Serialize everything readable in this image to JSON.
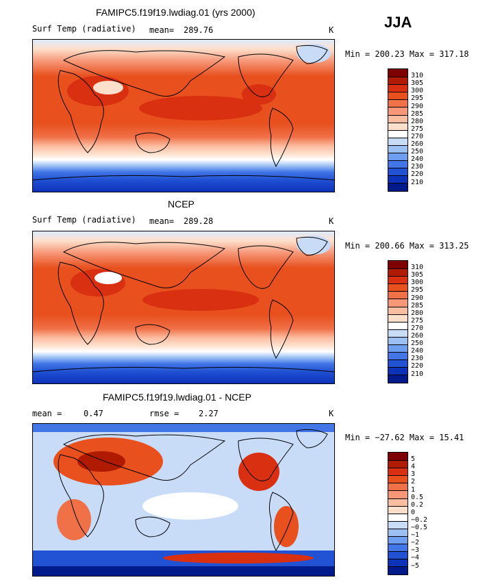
{
  "season": "JJA",
  "panels": [
    {
      "title": "FAMIPC5.f19f19.lwdiag.01 (yrs 2000)",
      "left_label": "Surf Temp (radiative)",
      "stat1_label": "mean=",
      "stat1_value": "289.76",
      "units": "K",
      "minmax": "Min = 200.23 Max = 317.18"
    },
    {
      "title": "NCEP",
      "left_label": "Surf Temp (radiative)",
      "stat1_label": "mean=",
      "stat1_value": "289.28",
      "units": "K",
      "minmax": "Min = 200.66 Max = 313.25"
    },
    {
      "title": "FAMIPC5.f19f19.lwdiag.01 - NCEP",
      "stat1_label": "mean =",
      "stat1_value": "0.47",
      "stat2_label": "rmse =",
      "stat2_value": "2.27",
      "units": "K",
      "minmax": "Min = −27.62 Max =  15.41"
    }
  ],
  "colorbar_abs": {
    "labels": [
      "310",
      "305",
      "300",
      "295",
      "290",
      "285",
      "280",
      "275",
      "270",
      "260",
      "250",
      "240",
      "230",
      "220",
      "210"
    ],
    "colors": [
      "#7f0000",
      "#b01a00",
      "#d83010",
      "#e8501e",
      "#f07048",
      "#f69878",
      "#fbbda0",
      "#fde0cc",
      "#ffffff",
      "#c8dcf8",
      "#9cc0f4",
      "#6e9ef0",
      "#4276e6",
      "#2252d4",
      "#0c32b8",
      "#001a8c"
    ]
  },
  "colorbar_diff": {
    "labels": [
      "5",
      "4",
      "3",
      "2",
      "1",
      "0.5",
      "0.2",
      "0",
      "−0.2",
      "−0.5",
      "−1",
      "−2",
      "−3",
      "−4",
      "−5"
    ],
    "colors": [
      "#7f0000",
      "#b01a00",
      "#d83010",
      "#e8501e",
      "#f07048",
      "#f69878",
      "#fbbda0",
      "#fde0cc",
      "#ffffff",
      "#c8dcf8",
      "#9cc0f4",
      "#6e9ef0",
      "#4276e6",
      "#2252d4",
      "#0c32b8",
      "#001a8c"
    ]
  },
  "chart_data": [
    {
      "type": "heatmap",
      "title": "FAMIPC5.f19f19.lwdiag.01 (yrs 2000)",
      "variable": "Surf Temp (radiative)",
      "units": "K",
      "mean": 289.76,
      "min": 200.23,
      "max": 317.18,
      "levels": [
        210,
        220,
        230,
        240,
        250,
        260,
        270,
        275,
        280,
        285,
        290,
        295,
        300,
        305,
        310
      ]
    },
    {
      "type": "heatmap",
      "title": "NCEP",
      "variable": "Surf Temp (radiative)",
      "units": "K",
      "mean": 289.28,
      "min": 200.66,
      "max": 313.25,
      "levels": [
        210,
        220,
        230,
        240,
        250,
        260,
        270,
        275,
        280,
        285,
        290,
        295,
        300,
        305,
        310
      ]
    },
    {
      "type": "heatmap",
      "title": "FAMIPC5.f19f19.lwdiag.01 - NCEP",
      "units": "K",
      "mean": 0.47,
      "rmse": 2.27,
      "min": -27.62,
      "max": 15.41,
      "levels": [
        -5,
        -4,
        -3,
        -2,
        -1,
        -0.5,
        -0.2,
        0,
        0.2,
        0.5,
        1,
        2,
        3,
        4,
        5
      ]
    }
  ]
}
